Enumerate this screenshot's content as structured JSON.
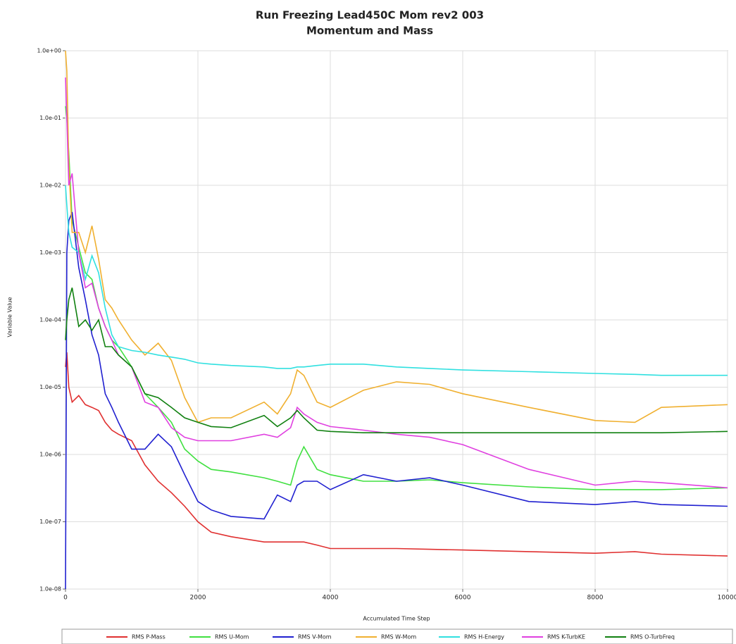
{
  "chart_data": {
    "type": "line",
    "title": "Run Freezing Lead450C Mom rev2 003",
    "subtitle": "Momentum and Mass",
    "x_label": "Accumulated Time Step",
    "y_label": "Variable Value",
    "log_y": true,
    "grid": true,
    "legend": "bottom",
    "xlim": [
      0,
      10000
    ],
    "xticks": [
      0,
      2000,
      4000,
      6000,
      8000,
      10000
    ],
    "ylim": [
      1e-08,
      1
    ],
    "yticks": [
      {
        "value": 1,
        "label": "1.0e+00"
      },
      {
        "value": 0.1,
        "label": "1.0e-01"
      },
      {
        "value": 0.01,
        "label": "1.0e-02"
      },
      {
        "value": 0.001,
        "label": "1.0e-03"
      },
      {
        "value": 0.0001,
        "label": "1.0e-04"
      },
      {
        "value": 1e-05,
        "label": "1.0e-05"
      },
      {
        "value": 1e-06,
        "label": "1.0e-06"
      },
      {
        "value": 1e-07,
        "label": "1.0e-07"
      },
      {
        "value": 1e-08,
        "label": "1.0e-08"
      }
    ],
    "x": [
      0,
      20,
      50,
      100,
      200,
      300,
      400,
      500,
      600,
      700,
      800,
      1000,
      1200,
      1400,
      1600,
      1800,
      2000,
      2200,
      2500,
      3000,
      3200,
      3400,
      3500,
      3600,
      3800,
      4000,
      4500,
      5000,
      5500,
      6000,
      7000,
      8000,
      8600,
      9000,
      10000
    ],
    "series": [
      {
        "name": "RMS P-Mass",
        "color": "#e03030",
        "values": [
          2e-05,
          3.3e-05,
          1e-05,
          6e-06,
          7.5e-06,
          5.5e-06,
          5e-06,
          4.5e-06,
          3e-06,
          2.3e-06,
          2e-06,
          1.6e-06,
          7e-07,
          4e-07,
          2.7e-07,
          1.7e-07,
          1e-07,
          7e-08,
          6e-08,
          5e-08,
          5e-08,
          5e-08,
          5e-08,
          5e-08,
          4.5e-08,
          4e-08,
          4e-08,
          4e-08,
          3.9e-08,
          3.8e-08,
          3.6e-08,
          3.4e-08,
          3.6e-08,
          3.3e-08,
          3.1e-08
        ]
      },
      {
        "name": "RMS U-Mom",
        "color": "#40e040",
        "values": [
          0.15,
          0.1,
          0.03,
          0.003,
          0.0012,
          0.0005,
          0.0004,
          0.00015,
          8e-05,
          5e-05,
          4e-05,
          2e-05,
          8e-06,
          5e-06,
          3e-06,
          1.2e-06,
          8e-07,
          6e-07,
          5.5e-07,
          4.5e-07,
          4e-07,
          3.5e-07,
          8e-07,
          1.3e-06,
          6e-07,
          5e-07,
          4e-07,
          4e-07,
          4.2e-07,
          3.8e-07,
          3.3e-07,
          3e-07,
          3e-07,
          3e-07,
          3.2e-07
        ]
      },
      {
        "name": "RMS V-Mom",
        "color": "#2020d0",
        "values": [
          1e-08,
          0.001,
          0.003,
          0.004,
          0.0006,
          0.0002,
          6e-05,
          3e-05,
          8e-06,
          5e-06,
          3e-06,
          1.2e-06,
          1.2e-06,
          2e-06,
          1.3e-06,
          5e-07,
          2e-07,
          1.5e-07,
          1.2e-07,
          1.1e-07,
          2.5e-07,
          2e-07,
          3.5e-07,
          4e-07,
          4e-07,
          3e-07,
          5e-07,
          4e-07,
          4.5e-07,
          3.5e-07,
          2e-07,
          1.8e-07,
          2e-07,
          1.8e-07,
          1.7e-07
        ]
      },
      {
        "name": "RMS W-Mom",
        "color": "#f0b030",
        "values": [
          1.0,
          0.5,
          0.02,
          0.002,
          0.002,
          0.001,
          0.0025,
          0.0008,
          0.0002,
          0.00015,
          0.0001,
          5e-05,
          3e-05,
          4.5e-05,
          2.5e-05,
          7e-06,
          3e-06,
          3.5e-06,
          3.5e-06,
          6e-06,
          4e-06,
          8e-06,
          1.8e-05,
          1.5e-05,
          6e-06,
          5e-06,
          9e-06,
          1.2e-05,
          1.1e-05,
          8e-06,
          5e-06,
          3.2e-06,
          3e-06,
          5e-06,
          5.5e-06
        ]
      },
      {
        "name": "RMS H-Energy",
        "color": "#30e0e0",
        "values": [
          0.01,
          0.005,
          0.002,
          0.0012,
          0.001,
          0.0004,
          0.0009,
          0.0005,
          0.00015,
          6e-05,
          4e-05,
          3.5e-05,
          3.3e-05,
          3e-05,
          2.8e-05,
          2.6e-05,
          2.3e-05,
          2.2e-05,
          2.1e-05,
          2e-05,
          1.9e-05,
          1.9e-05,
          2e-05,
          2e-05,
          2.1e-05,
          2.2e-05,
          2.2e-05,
          2e-05,
          1.9e-05,
          1.8e-05,
          1.7e-05,
          1.6e-05,
          1.55e-05,
          1.5e-05,
          1.5e-05
        ]
      },
      {
        "name": "RMS K-TurbKE",
        "color": "#e040e0",
        "values": [
          0.4,
          0.1,
          0.01,
          0.015,
          0.001,
          0.0003,
          0.00035,
          0.00015,
          8e-05,
          5e-05,
          3e-05,
          2e-05,
          6e-06,
          5e-06,
          2.5e-06,
          1.8e-06,
          1.6e-06,
          1.6e-06,
          1.6e-06,
          2e-06,
          1.8e-06,
          2.5e-06,
          5e-06,
          4e-06,
          3e-06,
          2.6e-06,
          2.3e-06,
          2e-06,
          1.8e-06,
          1.4e-06,
          6e-07,
          3.5e-07,
          4e-07,
          3.8e-07,
          3.2e-07
        ]
      },
      {
        "name": "RMS O-TurbFreq",
        "color": "#108010",
        "values": [
          5e-05,
          0.0001,
          0.0002,
          0.0003,
          8e-05,
          0.0001,
          7e-05,
          0.0001,
          4e-05,
          4e-05,
          3e-05,
          2e-05,
          8e-06,
          7e-06,
          5e-06,
          3.5e-06,
          3e-06,
          2.6e-06,
          2.5e-06,
          3.8e-06,
          2.6e-06,
          3.5e-06,
          4.5e-06,
          3.5e-06,
          2.3e-06,
          2.2e-06,
          2.1e-06,
          2.1e-06,
          2.1e-06,
          2.1e-06,
          2.1e-06,
          2.1e-06,
          2.1e-06,
          2.1e-06,
          2.2e-06
        ]
      }
    ]
  }
}
